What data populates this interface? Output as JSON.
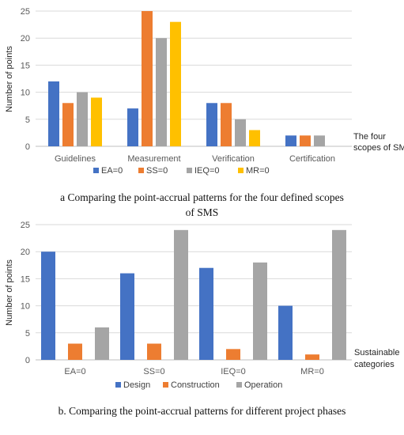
{
  "chart_data": [
    {
      "type": "bar",
      "ylabel": "Number of points",
      "ylim": [
        0,
        25
      ],
      "yticks": [
        0,
        5,
        10,
        15,
        20,
        25
      ],
      "grid": true,
      "legend_position": "bottom",
      "categories": [
        "Guidelines",
        "Measurement",
        "Verification",
        "Certification"
      ],
      "series": [
        {
          "name": "EA=0",
          "color": "#4472C4",
          "values": [
            12,
            7,
            8,
            2
          ]
        },
        {
          "name": "SS=0",
          "color": "#ED7D31",
          "values": [
            8,
            25,
            8,
            2
          ]
        },
        {
          "name": "IEQ=0",
          "color": "#A5A5A5",
          "values": [
            10,
            20,
            5,
            2
          ]
        },
        {
          "name": "MR=0",
          "color": "#FFC000",
          "values": [
            9,
            23,
            3,
            0
          ]
        }
      ],
      "side_label": [
        "The four",
        "scopes of SMS"
      ],
      "caption": "a Comparing the point-accrual patterns for the four defined scopes of SMS"
    },
    {
      "type": "bar",
      "ylabel": "Number of points",
      "ylim": [
        0,
        25
      ],
      "yticks": [
        0,
        5,
        10,
        15,
        20,
        25
      ],
      "grid": true,
      "legend_position": "bottom",
      "categories": [
        "EA=0",
        "SS=0",
        "IEQ=0",
        "MR=0"
      ],
      "series": [
        {
          "name": "Design",
          "color": "#4472C4",
          "values": [
            20,
            16,
            17,
            10
          ]
        },
        {
          "name": "Construction",
          "color": "#ED7D31",
          "values": [
            3,
            3,
            2,
            1
          ]
        },
        {
          "name": "Operation",
          "color": "#A5A5A5",
          "values": [
            6,
            24,
            18,
            24
          ]
        }
      ],
      "side_label": [
        "Sustainable",
        "categories"
      ],
      "caption": "b. Comparing the point-accrual patterns for different project phases"
    }
  ]
}
